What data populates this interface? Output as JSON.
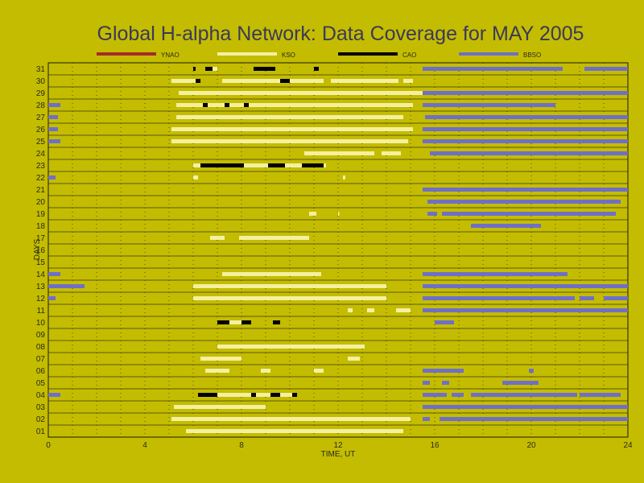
{
  "chart_data": {
    "type": "timeline",
    "title": "Global H-alpha Network: Data Coverage for MAY 2005",
    "xlabel": "TIME, UT",
    "ylabel": "DAYS",
    "xlim": [
      0,
      24
    ],
    "ylim": [
      1,
      31
    ],
    "x_ticks": [
      "0",
      "4",
      "8",
      "12",
      "16",
      "20",
      "24"
    ],
    "y_ticks": [
      "01",
      "02",
      "03",
      "04",
      "05",
      "06",
      "07",
      "08",
      "09",
      "10",
      "11",
      "12",
      "13",
      "14",
      "15",
      "16",
      "17",
      "18",
      "19",
      "20",
      "21",
      "22",
      "23",
      "24",
      "25",
      "26",
      "27",
      "28",
      "29",
      "30",
      "31"
    ],
    "background_color": "#c4bc00",
    "grid": true,
    "legend_position": "top",
    "series": [
      {
        "name": "YNAO",
        "color": "#a52a2a",
        "segments": []
      },
      {
        "name": "KSO",
        "color": "#f4f0a0",
        "segments": [
          [
            1,
            5.7,
            14.7
          ],
          [
            2,
            5.1,
            15.0
          ],
          [
            3,
            5.2,
            9.0
          ],
          [
            4,
            6.6,
            10.3
          ],
          [
            6,
            6.5,
            7.5
          ],
          [
            6,
            8.8,
            9.2
          ],
          [
            6,
            11.0,
            11.4
          ],
          [
            7,
            6.3,
            8.0
          ],
          [
            7,
            12.4,
            12.9
          ],
          [
            8,
            7.0,
            13.1
          ],
          [
            10,
            7.5,
            8.3
          ],
          [
            11,
            12.4,
            12.6
          ],
          [
            11,
            13.2,
            13.5
          ],
          [
            11,
            14.4,
            15.0
          ],
          [
            12,
            6.0,
            14.0
          ],
          [
            13,
            6.0,
            14.0
          ],
          [
            14,
            7.2,
            11.3
          ],
          [
            17,
            6.7,
            7.3
          ],
          [
            17,
            7.9,
            10.8
          ],
          [
            19,
            10.8,
            11.1
          ],
          [
            19,
            12.0,
            12.0
          ],
          [
            22,
            6.0,
            6.2
          ],
          [
            22,
            12.2,
            12.3
          ],
          [
            23,
            6.0,
            11.5
          ],
          [
            24,
            10.6,
            13.5
          ],
          [
            24,
            13.8,
            14.6
          ],
          [
            25,
            5.1,
            14.9
          ],
          [
            26,
            5.1,
            15.1
          ],
          [
            27,
            5.3,
            14.7
          ],
          [
            28,
            5.3,
            15.1
          ],
          [
            29,
            5.4,
            15.5
          ],
          [
            30,
            5.1,
            6.1
          ],
          [
            30,
            7.2,
            11.4
          ],
          [
            30,
            11.7,
            14.5
          ],
          [
            30,
            14.7,
            15.1
          ],
          [
            31,
            6.7,
            7.0
          ]
        ]
      },
      {
        "name": "CAO",
        "color": "#000000",
        "segments": [
          [
            4,
            6.2,
            7.0
          ],
          [
            4,
            8.4,
            8.6
          ],
          [
            4,
            9.2,
            9.6
          ],
          [
            4,
            10.1,
            10.3
          ],
          [
            10,
            7.0,
            7.5
          ],
          [
            10,
            8.0,
            8.4
          ],
          [
            10,
            9.3,
            9.6
          ],
          [
            23,
            6.3,
            8.1
          ],
          [
            23,
            9.1,
            9.8
          ],
          [
            23,
            10.5,
            11.4
          ],
          [
            28,
            6.4,
            6.6
          ],
          [
            28,
            7.3,
            7.5
          ],
          [
            28,
            8.1,
            8.3
          ],
          [
            30,
            6.1,
            6.3
          ],
          [
            30,
            9.6,
            10.0
          ],
          [
            31,
            6.0,
            6.1
          ],
          [
            31,
            6.5,
            6.8
          ],
          [
            31,
            8.5,
            9.4
          ],
          [
            31,
            11.0,
            11.2
          ]
        ]
      },
      {
        "name": "BBSO",
        "color": "#6f6fc8",
        "segments": [
          [
            2,
            15.5,
            15.8
          ],
          [
            2,
            16.2,
            24.0
          ],
          [
            3,
            15.5,
            24.0
          ],
          [
            4,
            0.0,
            0.5
          ],
          [
            4,
            15.5,
            16.5
          ],
          [
            4,
            16.7,
            17.2
          ],
          [
            4,
            17.5,
            21.9
          ],
          [
            4,
            22.0,
            23.7
          ],
          [
            5,
            15.5,
            15.8
          ],
          [
            5,
            16.3,
            16.6
          ],
          [
            5,
            18.8,
            20.3
          ],
          [
            6,
            15.5,
            17.2
          ],
          [
            6,
            19.9,
            20.1
          ],
          [
            10,
            16.0,
            16.8
          ],
          [
            11,
            15.5,
            24.0
          ],
          [
            12,
            0.0,
            0.3
          ],
          [
            12,
            15.5,
            21.8
          ],
          [
            12,
            22.0,
            22.6
          ],
          [
            12,
            23.0,
            24.0
          ],
          [
            13,
            0.0,
            1.5
          ],
          [
            13,
            15.5,
            24.0
          ],
          [
            14,
            0.0,
            0.5
          ],
          [
            14,
            15.5,
            21.5
          ],
          [
            18,
            17.5,
            20.4
          ],
          [
            19,
            15.7,
            16.1
          ],
          [
            19,
            16.3,
            23.5
          ],
          [
            20,
            15.7,
            23.7
          ],
          [
            21,
            15.5,
            24.0
          ],
          [
            22,
            0.0,
            0.3
          ],
          [
            24,
            15.8,
            24.0
          ],
          [
            25,
            0.0,
            0.5
          ],
          [
            25,
            15.5,
            24.0
          ],
          [
            26,
            0.0,
            0.4
          ],
          [
            26,
            15.5,
            24.0
          ],
          [
            27,
            0.0,
            0.4
          ],
          [
            27,
            15.6,
            24.0
          ],
          [
            28,
            0.0,
            0.5
          ],
          [
            28,
            15.5,
            21.0
          ],
          [
            29,
            15.5,
            24.0
          ],
          [
            31,
            15.5,
            21.3
          ],
          [
            31,
            22.2,
            24.0
          ]
        ]
      }
    ]
  }
}
